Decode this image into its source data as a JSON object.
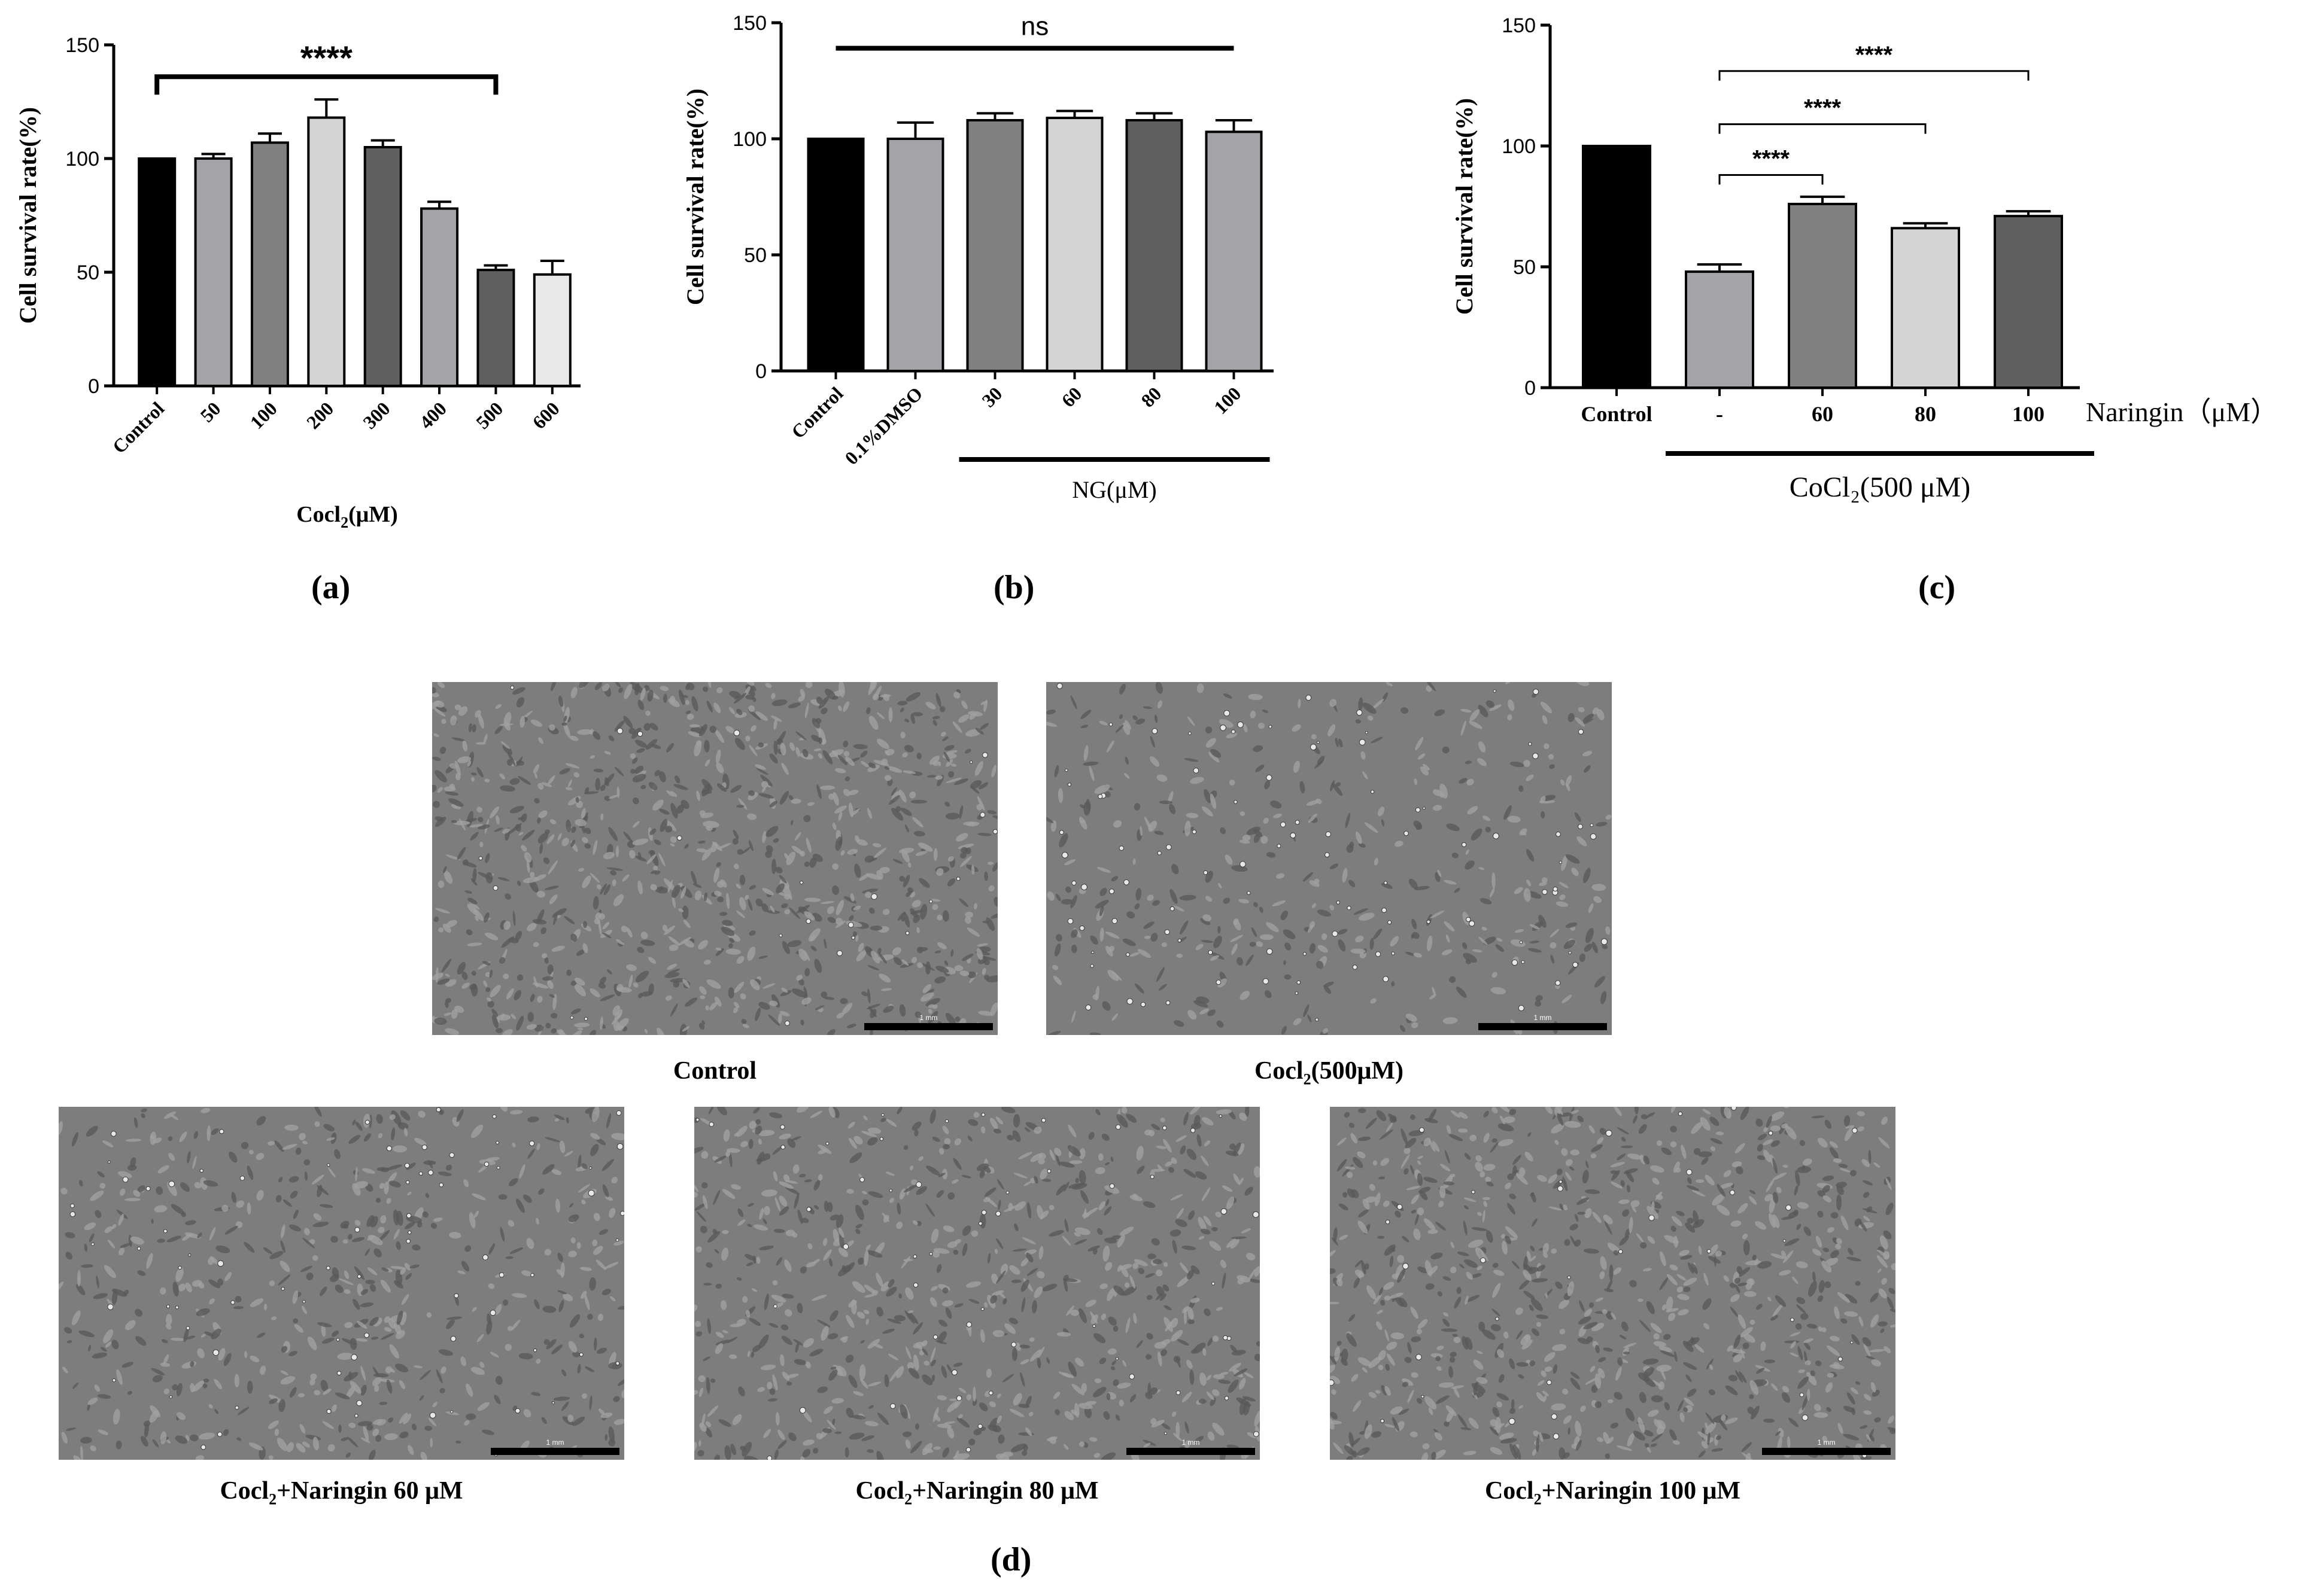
{
  "colors": {
    "black": "#000000",
    "dark": "#5f5f5f",
    "mid": "#808080",
    "midlight": "#a3a3a8",
    "light": "#d4d4d4",
    "lightest": "#e8e8e8"
  },
  "chart_data": [
    {
      "panel": "(a)",
      "type": "bar",
      "categories": [
        "Control",
        "50",
        "100",
        "200",
        "300",
        "400",
        "500",
        "600"
      ],
      "values": [
        100,
        100,
        107,
        118,
        105,
        78,
        51,
        49
      ],
      "errors": [
        0,
        2,
        4,
        8,
        3,
        3,
        2,
        6
      ],
      "bar_colors": [
        "#000000",
        "#a3a3a8",
        "#808080",
        "#d4d4d4",
        "#5f5f5f",
        "#a3a3a8",
        "#5f5f5f",
        "#e8e8e8"
      ],
      "xlabel": "Cocl",
      "xlabel_sub": "2",
      "xlabel_unit": "(μM)",
      "ylabel": "Cell survival rate(%)",
      "ylim": [
        0,
        150
      ],
      "yticks": [
        "0",
        "50",
        "100",
        "150"
      ],
      "significance": [
        {
          "from": "Control",
          "to": "500",
          "label": "****"
        }
      ]
    },
    {
      "panel": "(b)",
      "type": "bar",
      "categories": [
        "Control",
        "0.1%DMSO",
        "30",
        "60",
        "80",
        "100"
      ],
      "values": [
        100,
        100,
        108,
        109,
        108,
        103
      ],
      "errors": [
        0,
        7,
        3,
        3,
        3,
        5
      ],
      "bar_colors": [
        "#000000",
        "#a3a3a8",
        "#808080",
        "#d4d4d4",
        "#5f5f5f",
        "#a3a3a8"
      ],
      "group_label": "NG(μM)",
      "ylabel": "Cell survival rate(%)",
      "ylim": [
        0,
        150
      ],
      "yticks": [
        "0",
        "50",
        "100",
        "150"
      ],
      "significance": [
        {
          "from": "Control",
          "to": "100",
          "label": "ns"
        }
      ]
    },
    {
      "panel": "(c)",
      "type": "bar",
      "categories": [
        "Control",
        "-",
        "60",
        "80",
        "100"
      ],
      "values": [
        100,
        48,
        76,
        66,
        71
      ],
      "errors": [
        0,
        3,
        3,
        2,
        2
      ],
      "bar_colors": [
        "#000000",
        "#a3a3a8",
        "#808080",
        "#d4d4d4",
        "#5f5f5f"
      ],
      "axis_right_label": "Naringin（μM）",
      "group_label": "CoCl₂(500 μM)",
      "ylabel": "Cell survival rate(%)",
      "ylim": [
        0,
        150
      ],
      "yticks": [
        "0",
        "50",
        "100",
        "150"
      ],
      "significance": [
        {
          "from": "-",
          "to": "60",
          "label": "****"
        },
        {
          "from": "-",
          "to": "80",
          "label": "****"
        },
        {
          "from": "-",
          "to": "100",
          "label": "****"
        }
      ]
    }
  ],
  "panel_labels": {
    "a": "(a)",
    "b": "(b)",
    "c": "(c)",
    "d": "(d)"
  },
  "micrographs": [
    {
      "caption": "Control",
      "scale_text": "1 mm",
      "density": 1.0
    },
    {
      "caption_main": "Cocl",
      "caption_sub": "2",
      "caption_rest": "(500μM)",
      "scale_text": "1 mm",
      "density": 0.35
    },
    {
      "caption_main": "Cocl",
      "caption_sub": "2",
      "caption_rest": "+Naringin 60 μM",
      "scale_text": "1 mm",
      "density": 0.55
    },
    {
      "caption_main": "Cocl",
      "caption_sub": "2",
      "caption_rest": "+Naringin 80 μM",
      "scale_text": "1 mm",
      "density": 0.75
    },
    {
      "caption_main": "Cocl",
      "caption_sub": "2",
      "caption_rest": "+Naringin 100 μM",
      "scale_text": "1 mm",
      "density": 0.9
    }
  ]
}
